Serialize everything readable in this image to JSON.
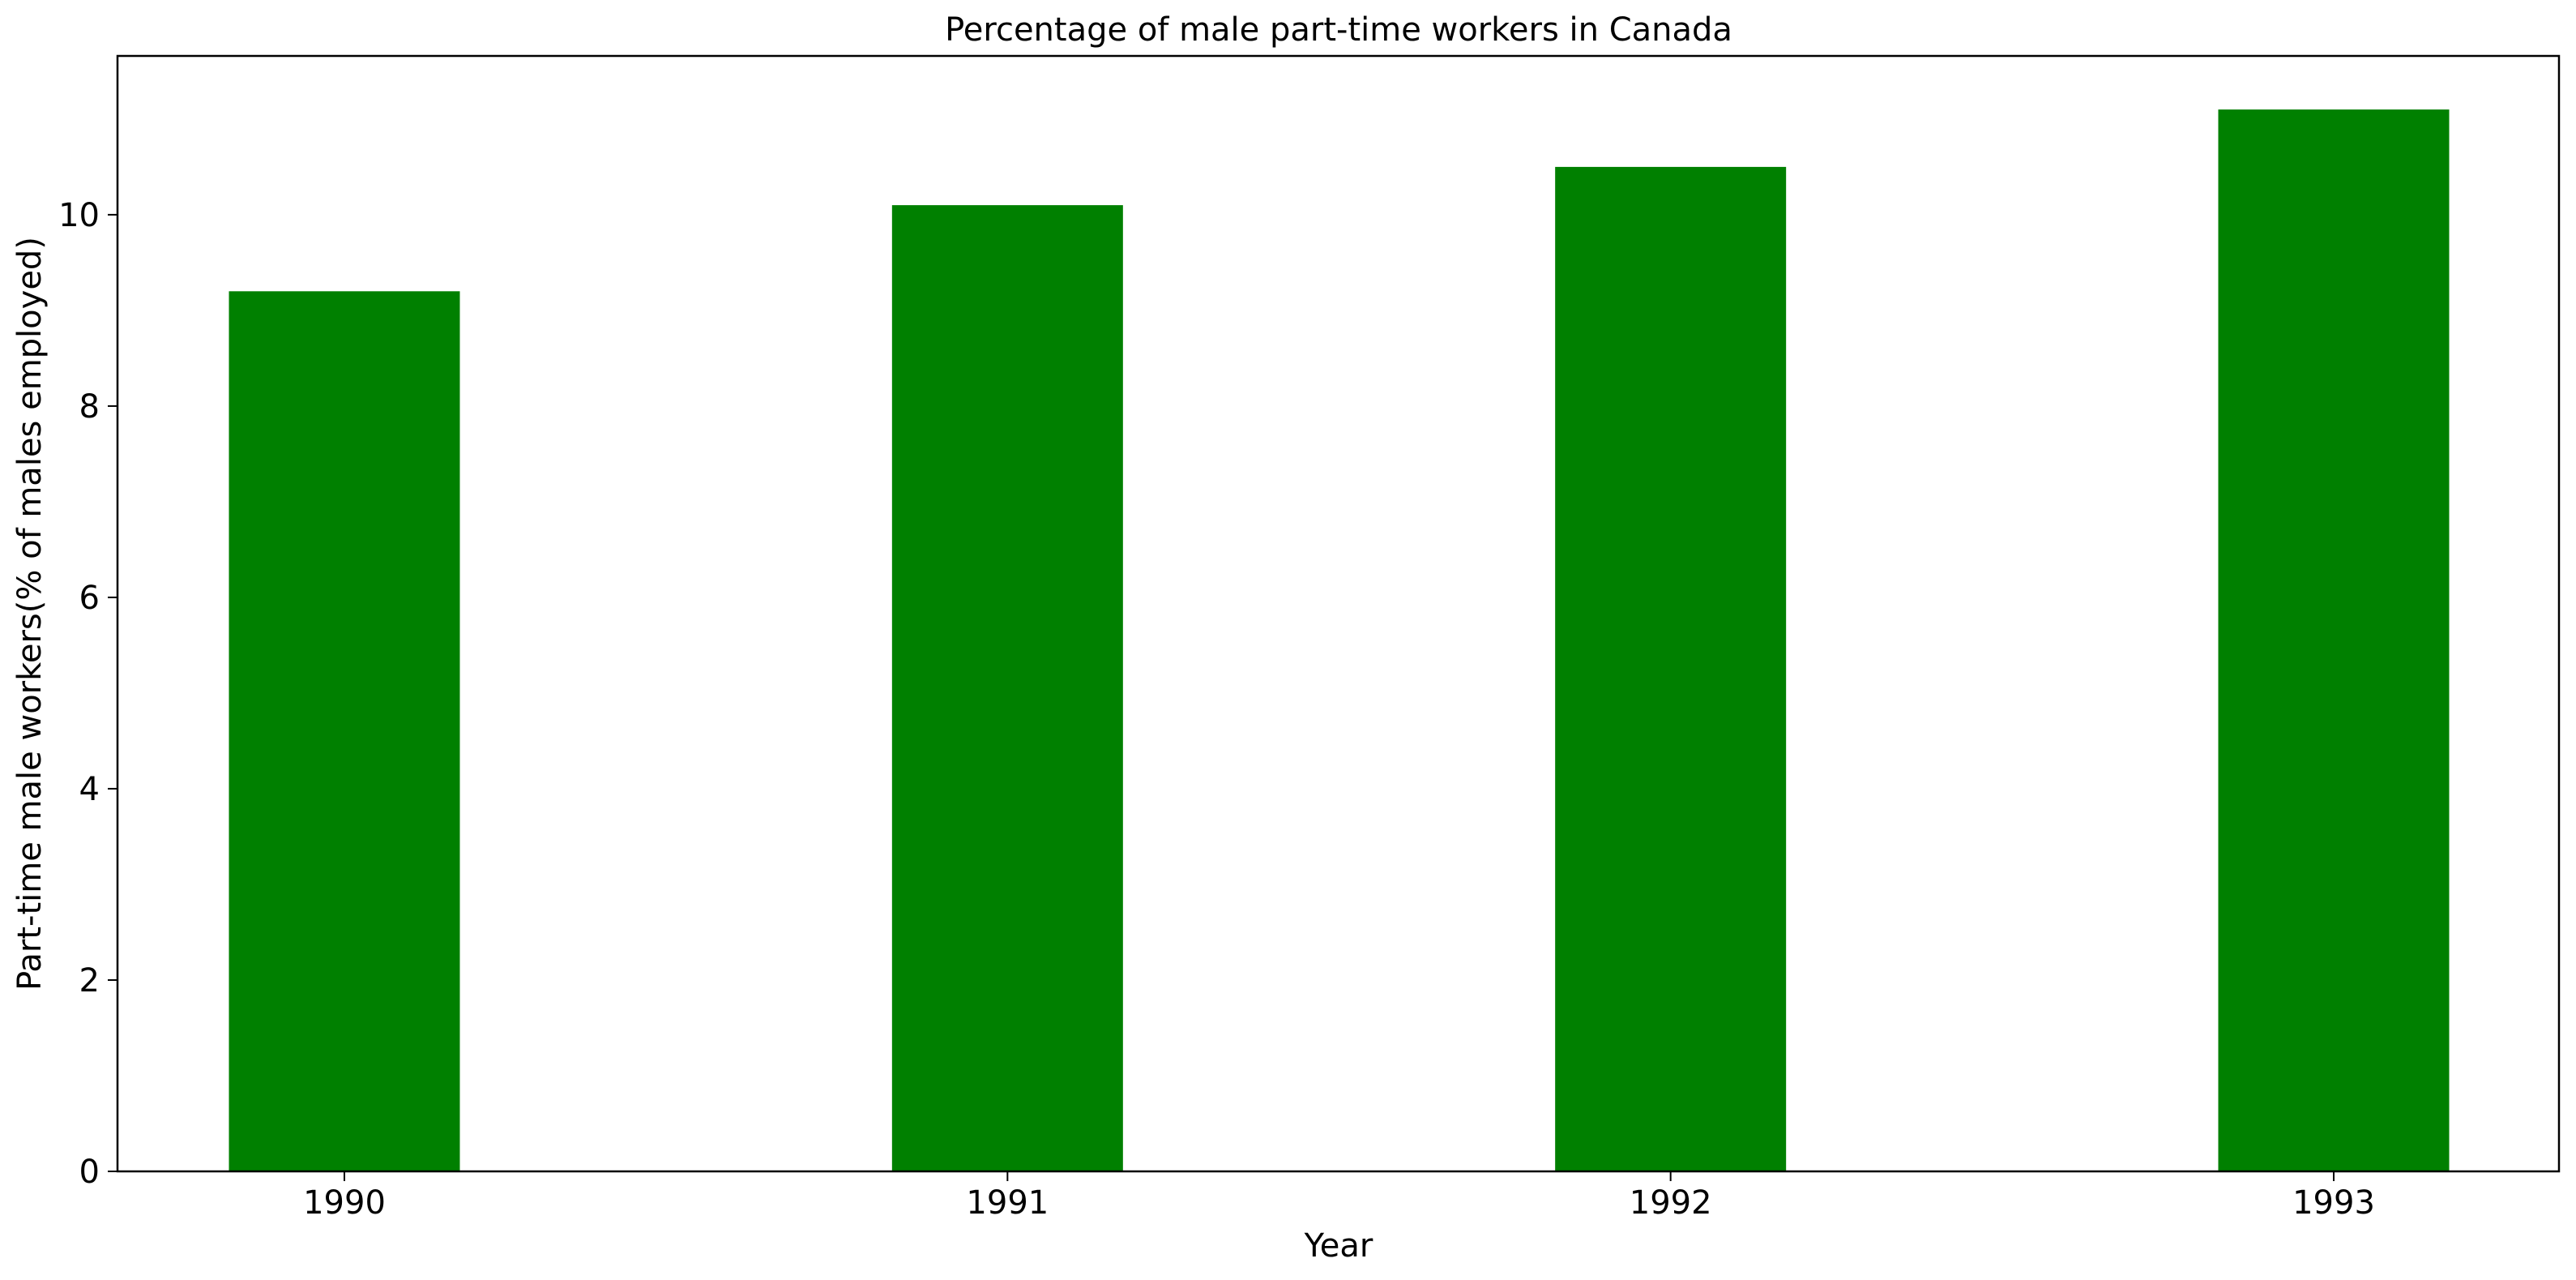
{
  "chart_data": {
    "type": "bar",
    "title": "Percentage of male part-time workers in Canada",
    "xlabel": "Year",
    "ylabel": "Part-time male workers(% of males employed)",
    "categories": [
      "1990",
      "1991",
      "1992",
      "1993"
    ],
    "values": [
      9.2,
      10.1,
      10.5,
      11.1
    ],
    "ylim": [
      0,
      11.66
    ],
    "yticks": [
      0,
      2,
      4,
      6,
      8,
      10
    ],
    "ytick_labels": [
      "0",
      "2",
      "4",
      "6",
      "8",
      "10"
    ],
    "bar_color": "#008000",
    "grid": false,
    "legend": "none"
  }
}
